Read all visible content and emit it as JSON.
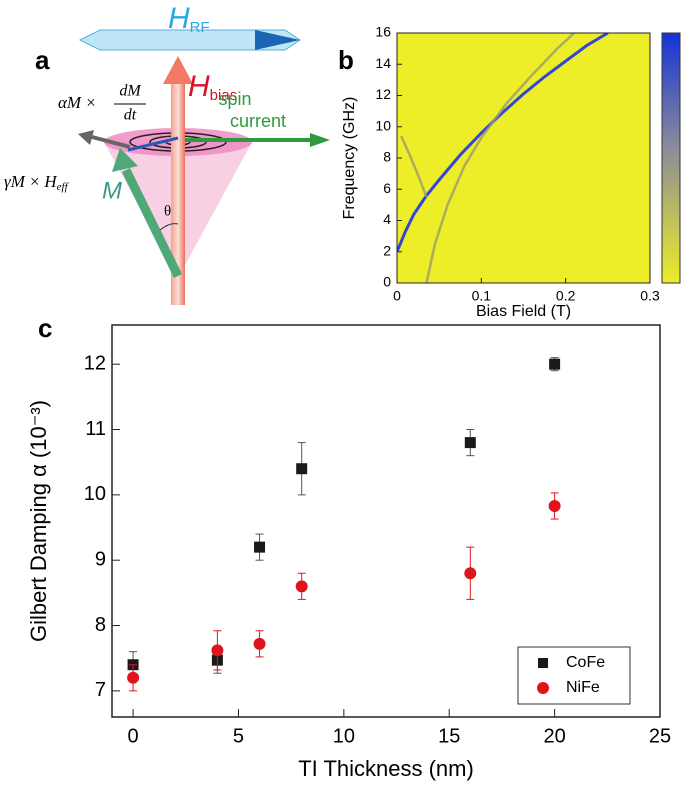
{
  "panel_labels": [
    "a",
    "b",
    "c"
  ],
  "diagram": {
    "h_rf": "H",
    "h_rf_sub": "RF",
    "h_bias": "H",
    "h_bias_sub": "bias",
    "spin_current": [
      "spin",
      "current"
    ],
    "magnetization": "M",
    "angle": "θ",
    "damping_term": [
      "αM",
      "×",
      "dM",
      "dt"
    ],
    "precession_term": [
      "γM",
      "×",
      "H",
      "eff"
    ]
  },
  "chart_data": [
    {
      "type": "line",
      "x_label": "Bias Field (T)",
      "y_label": "Frequency (GHz)",
      "xlim": [
        0,
        0.3
      ],
      "ylim": [
        0,
        16
      ],
      "xticks": [
        0,
        0.1,
        0.2,
        0.3
      ],
      "yticks": [
        0,
        2,
        4,
        6,
        8,
        10,
        12,
        14,
        16
      ],
      "background": "#eded28",
      "series": [
        {
          "color": "#3346d6",
          "x": [
            0,
            0.01,
            0.02,
            0.035,
            0.05,
            0.075,
            0.1,
            0.125,
            0.15,
            0.175,
            0.2,
            0.225,
            0.25
          ],
          "values": [
            2,
            3.3,
            4.4,
            5.6,
            6.6,
            8.2,
            9.6,
            10.9,
            12.1,
            13.2,
            14.2,
            15.2,
            16
          ]
        },
        {
          "color": "#9a9a70",
          "x": [
            0.005,
            0.015,
            0.025,
            0.035
          ],
          "values": [
            9.4,
            8.2,
            6.9,
            5.5
          ]
        },
        {
          "color": "#9a9a70",
          "x": [
            0.035,
            0.045,
            0.06,
            0.08,
            0.1,
            0.13,
            0.16,
            0.19,
            0.21
          ],
          "values": [
            0,
            2.5,
            5,
            7.5,
            9.3,
            11.5,
            13.3,
            15,
            16
          ]
        }
      ]
    },
    {
      "type": "scatter",
      "x_label": "TI Thickness (nm)",
      "y_label": "Gilbert Damping α (10⁻³)",
      "xlim": [
        -1,
        25
      ],
      "ylim": [
        6.6,
        12.6
      ],
      "xticks": [
        0,
        5,
        10,
        15,
        20,
        25
      ],
      "yticks": [
        7,
        8,
        9,
        10,
        11,
        12
      ],
      "legend": "lower right",
      "series": [
        {
          "name": "CoFe",
          "color": "#1a1a1a",
          "marker": "square",
          "x": [
            0,
            4,
            6,
            8,
            16,
            20
          ],
          "values": [
            7.4,
            7.47,
            9.2,
            10.4,
            10.8,
            12.0
          ],
          "errors": [
            0.2,
            0.2,
            0.2,
            0.4,
            0.2,
            0.1
          ]
        },
        {
          "name": "NiFe",
          "color": "#e0141e",
          "marker": "circle",
          "x": [
            0,
            4,
            6,
            8,
            16,
            20
          ],
          "values": [
            7.2,
            7.62,
            7.72,
            8.6,
            8.8,
            9.83
          ],
          "errors": [
            0.2,
            0.3,
            0.2,
            0.2,
            0.4,
            0.2
          ]
        }
      ]
    }
  ]
}
